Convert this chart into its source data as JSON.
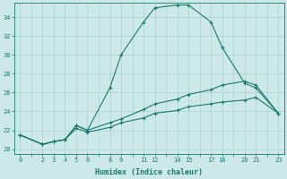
{
  "xlabel": "Humidex (Indice chaleur)",
  "ylabel": "",
  "bg_color": "#cde8e8",
  "grid_color": "#aad0d0",
  "line_color": "#1a7a6e",
  "xlim": [
    -0.5,
    23.5
  ],
  "ylim": [
    19.5,
    35.5
  ],
  "xticks_all": [
    0,
    1,
    2,
    3,
    4,
    5,
    6,
    7,
    8,
    9,
    10,
    11,
    12,
    13,
    14,
    15,
    16,
    17,
    18,
    19,
    20,
    21,
    22,
    23
  ],
  "xtick_labels_positions": [
    0,
    2,
    3,
    4,
    5,
    6,
    8,
    9,
    11,
    12,
    14,
    15,
    17,
    18,
    20,
    21,
    23
  ],
  "yticks": [
    20,
    22,
    24,
    26,
    28,
    30,
    32,
    34
  ],
  "curves": [
    {
      "x": [
        0,
        2,
        3,
        4,
        5,
        6,
        8,
        9,
        11,
        12,
        14,
        15,
        17,
        18,
        20,
        21,
        23
      ],
      "y": [
        21.5,
        20.5,
        20.8,
        21.0,
        22.5,
        22.0,
        26.5,
        30.0,
        33.5,
        35.0,
        35.3,
        35.3,
        33.5,
        30.8,
        27.0,
        26.5,
        23.8
      ]
    },
    {
      "x": [
        0,
        2,
        3,
        4,
        5,
        6,
        8,
        9,
        11,
        12,
        14,
        15,
        17,
        18,
        20,
        21,
        23
      ],
      "y": [
        21.5,
        20.5,
        20.8,
        21.0,
        22.5,
        22.0,
        22.8,
        23.2,
        24.2,
        24.8,
        25.3,
        25.8,
        26.3,
        26.8,
        27.2,
        26.8,
        23.8
      ]
    },
    {
      "x": [
        0,
        2,
        3,
        4,
        5,
        6,
        8,
        9,
        11,
        12,
        14,
        15,
        17,
        18,
        20,
        21,
        23
      ],
      "y": [
        21.5,
        20.5,
        20.8,
        21.0,
        22.2,
        21.8,
        22.3,
        22.8,
        23.3,
        23.8,
        24.1,
        24.5,
        24.8,
        25.0,
        25.2,
        25.5,
        23.8
      ]
    }
  ]
}
